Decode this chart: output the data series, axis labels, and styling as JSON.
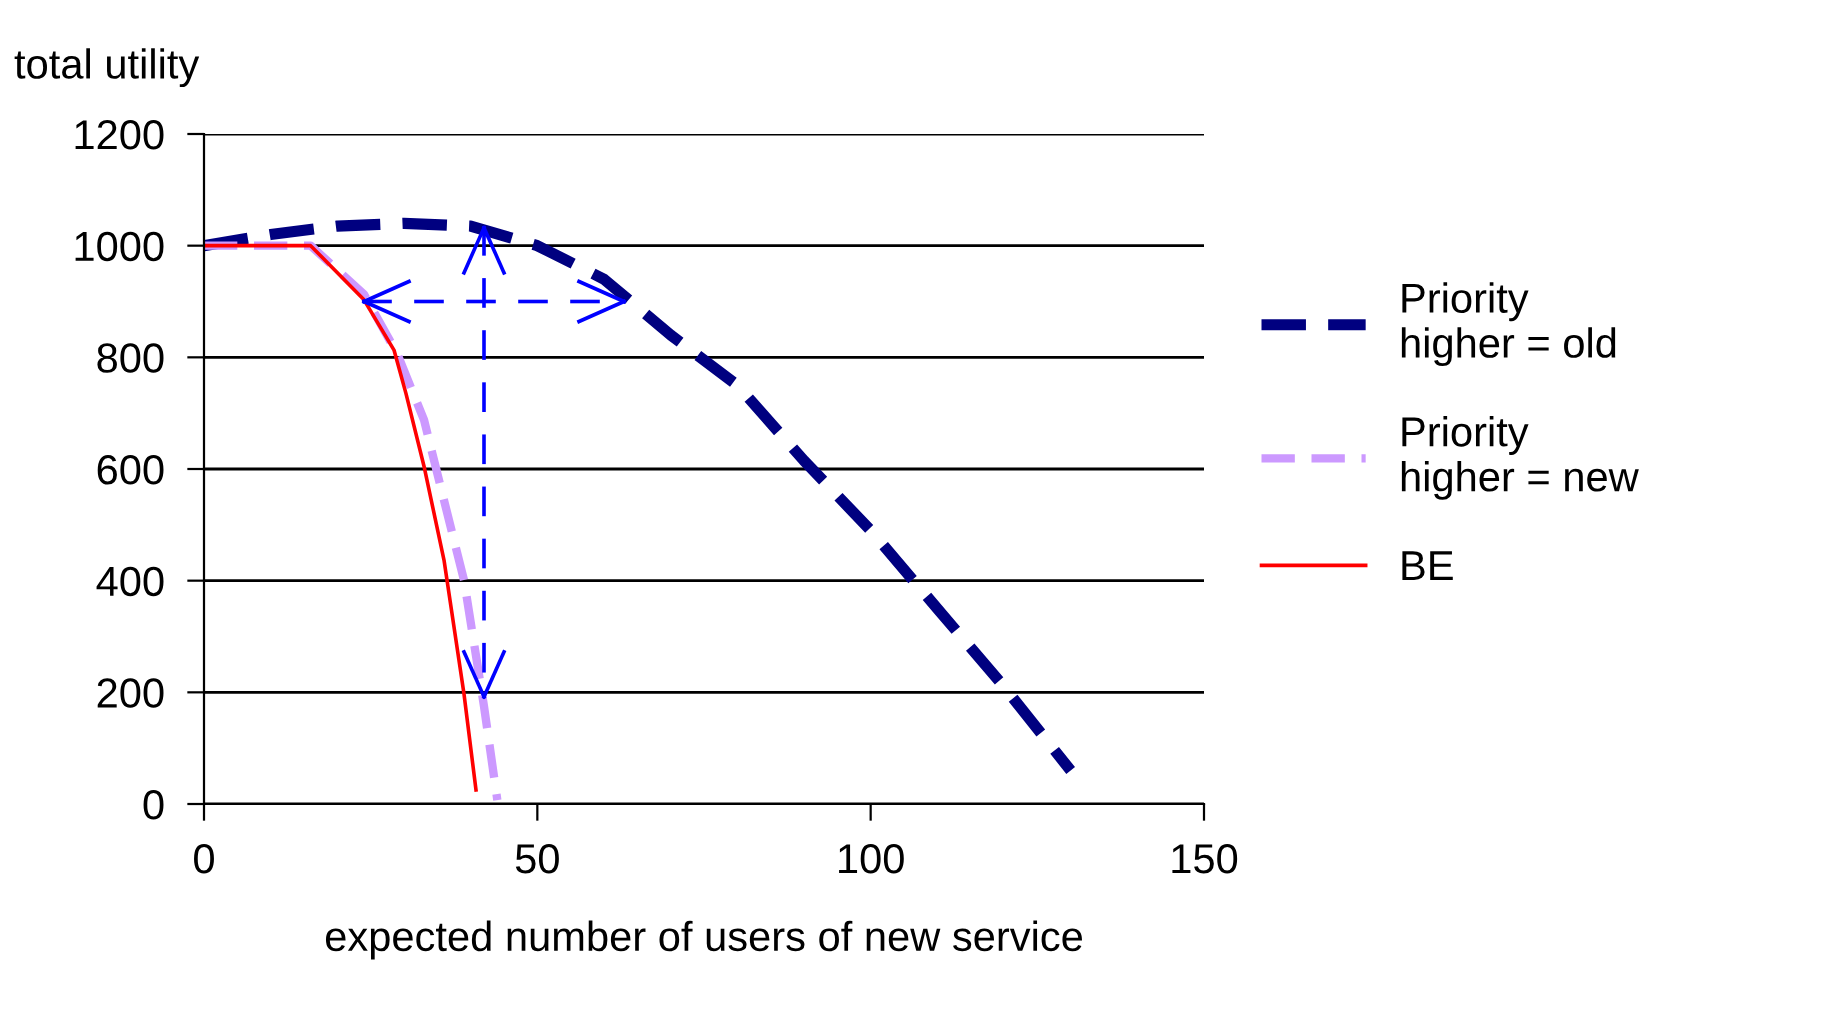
{
  "chart_data": {
    "type": "line",
    "xlabel": "expected number of users of new service",
    "ylabel": "total utility",
    "xlim": [
      0,
      150
    ],
    "xticks": [
      0,
      50,
      100,
      150
    ],
    "ylim": [
      0,
      1200
    ],
    "yticks": [
      0,
      200,
      400,
      600,
      800,
      1000,
      1200
    ],
    "grid": "y",
    "legend": "right",
    "marker": "none",
    "series": [
      {
        "name": "Priority\nhigher = old",
        "color": "#000080",
        "line_style": "dashed",
        "x": [
          0,
          10,
          20,
          30,
          40,
          50,
          60,
          70,
          80,
          90,
          100,
          110,
          120,
          130
        ],
        "values": [
          1000,
          1020,
          1035,
          1040,
          1035,
          1000,
          940,
          840,
          750,
          615,
          490,
          350,
          210,
          60
        ]
      },
      {
        "name": "Priority\nhigher = new",
        "color": "#cc99ff",
        "line_style": "dashed",
        "x": [
          0,
          16,
          24,
          29,
          33,
          36,
          39,
          42,
          44
        ],
        "values": [
          1000,
          1000,
          913,
          806,
          688,
          544,
          401,
          175,
          7
        ]
      },
      {
        "name": "BE",
        "color": "#ff0000",
        "line_style": "solid",
        "x": [
          0,
          16,
          24,
          28.5,
          30.3,
          33,
          36,
          39,
          40.8
        ],
        "values": [
          1000,
          1000,
          903,
          813,
          735,
          605,
          437,
          197,
          25
        ]
      }
    ]
  }
}
